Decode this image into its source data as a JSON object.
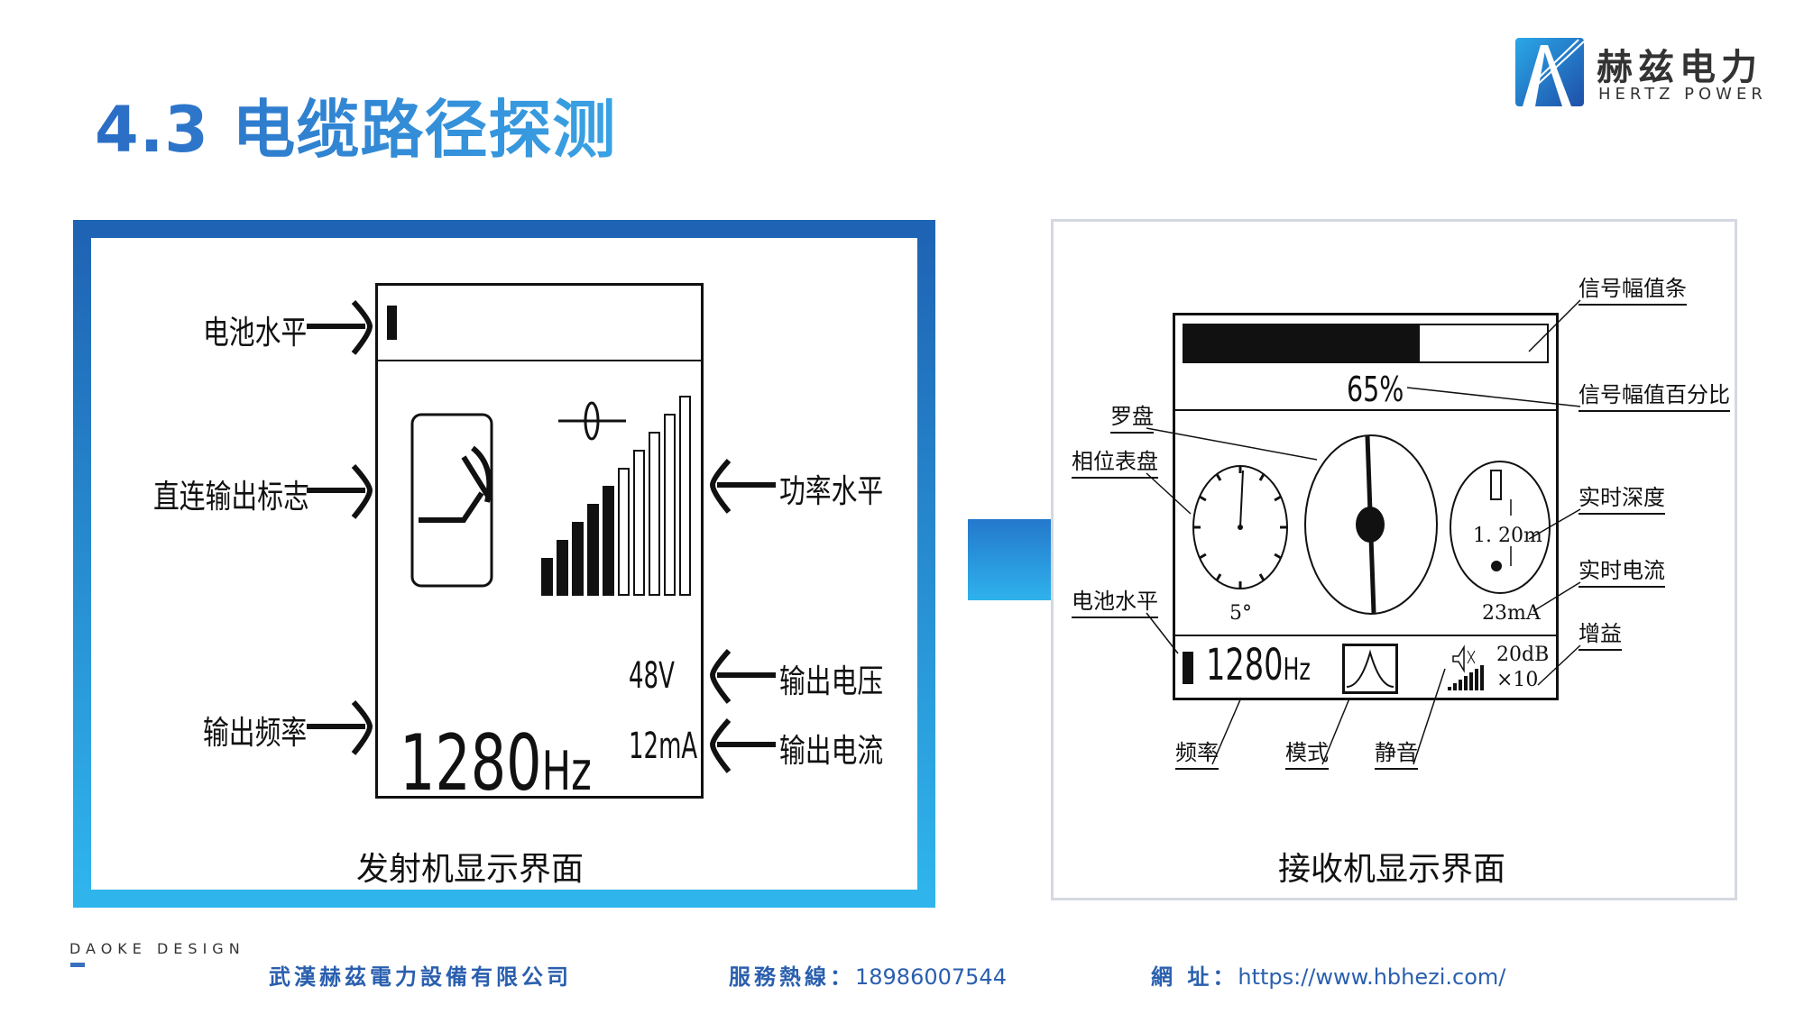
{
  "title": "4.3 电缆路径探测",
  "logo": {
    "cn": "赫兹电力",
    "en": "HERTZ POWER"
  },
  "transmitter": {
    "caption": "发射机显示界面",
    "labels": {
      "battery": "电池水平",
      "direct": "直连输出标志",
      "freq": "输出频率",
      "power": "功率水平",
      "voltage": "输出电压",
      "current": "输出电流"
    },
    "screen": {
      "frequency": "1280",
      "freq_unit": "Hz",
      "voltage": "48V",
      "current": "12mA",
      "power_bars_total": 10,
      "power_bars_filled": 5
    }
  },
  "receiver": {
    "caption": "接收机显示界面",
    "labels": {
      "signal_bar": "信号幅值条",
      "signal_pct": "信号幅值百分比",
      "compass": "罗盘",
      "phase": "相位表盘",
      "depth": "实时深度",
      "current": "实时电流",
      "gain": "增益",
      "battery": "电池水平",
      "freq": "频率",
      "mode": "模式",
      "mute": "静音"
    },
    "screen": {
      "signal_percent": "65%",
      "signal_level": 0.65,
      "phase": "5°",
      "depth": "1. 20m",
      "current": "23mA",
      "frequency": "1280",
      "freq_unit": "Hz",
      "gain_db": "20dB",
      "gain_mult": "×10"
    }
  },
  "footer": {
    "design": "DAOKE DESIGN",
    "company": "武漢赫茲電力設備有限公司",
    "hotline_label": "服務熱線：",
    "hotline": "18986007544",
    "url_label": "網 址：",
    "url": "https://www.hbhezi.com/"
  },
  "colors": {
    "title": "#2f7fd0",
    "accent": "#2478cc",
    "footer": "#2a5fae"
  }
}
